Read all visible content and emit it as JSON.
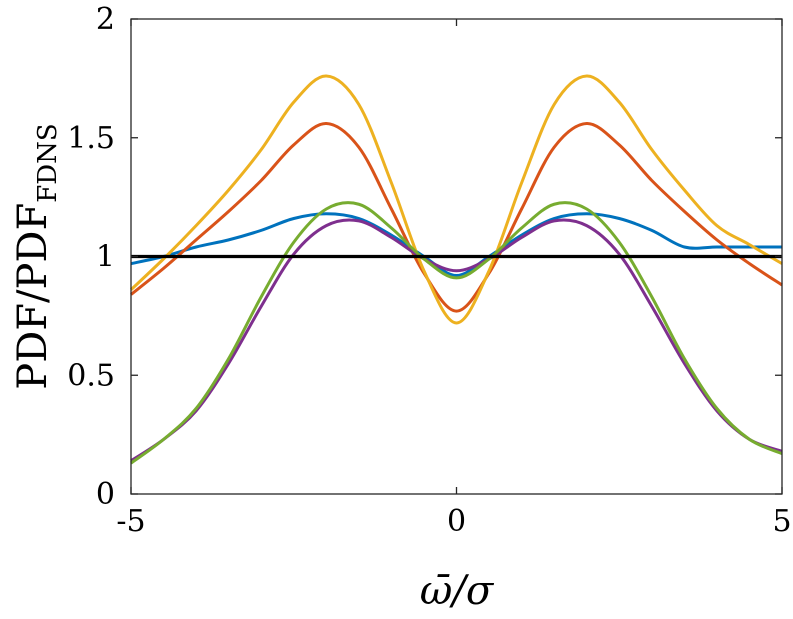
{
  "chart_data": {
    "type": "line",
    "title": "",
    "xlabel": "ω̄/σ",
    "ylabel": "PDF/PDF",
    "ylabel_subscript": "FDNS",
    "xlim": [
      -5,
      5
    ],
    "ylim": [
      0,
      2
    ],
    "xticks": [
      "-5",
      "0",
      "5"
    ],
    "yticks": [
      "0",
      "0.5",
      "1",
      "1.5",
      "2"
    ],
    "xtick_values": [
      -5,
      0,
      5
    ],
    "ytick_values": [
      0,
      0.5,
      1,
      1.5,
      2
    ],
    "grid": false,
    "legend": "none",
    "x": [
      -5,
      -4.5,
      -4,
      -3.5,
      -3,
      -2.5,
      -2,
      -1.5,
      -1,
      -0.5,
      0,
      0.5,
      1,
      1.5,
      2,
      2.5,
      3,
      3.5,
      4,
      4.5,
      5
    ],
    "series": [
      {
        "color": "#0072BD",
        "values": [
          0.97,
          1.0,
          1.04,
          1.07,
          1.11,
          1.16,
          1.18,
          1.16,
          1.09,
          1.0,
          0.92,
          1.0,
          1.09,
          1.16,
          1.18,
          1.16,
          1.11,
          1.04,
          1.04,
          1.04,
          1.04
        ]
      },
      {
        "color": "#D95319",
        "values": [
          0.84,
          0.95,
          1.07,
          1.19,
          1.32,
          1.47,
          1.56,
          1.46,
          1.2,
          0.93,
          0.77,
          0.93,
          1.2,
          1.46,
          1.56,
          1.47,
          1.32,
          1.19,
          1.07,
          0.97,
          0.88
        ]
      },
      {
        "color": "#EDB120",
        "values": [
          0.86,
          0.99,
          1.13,
          1.28,
          1.45,
          1.65,
          1.76,
          1.64,
          1.31,
          0.94,
          0.72,
          0.94,
          1.31,
          1.64,
          1.76,
          1.65,
          1.45,
          1.28,
          1.13,
          1.05,
          0.97
        ]
      },
      {
        "color": "#7E2F8E",
        "values": [
          0.14,
          0.23,
          0.35,
          0.55,
          0.79,
          1.01,
          1.13,
          1.15,
          1.08,
          0.99,
          0.94,
          0.99,
          1.08,
          1.15,
          1.13,
          1.01,
          0.79,
          0.55,
          0.35,
          0.23,
          0.18
        ]
      },
      {
        "color": "#77AC30",
        "values": [
          0.13,
          0.23,
          0.36,
          0.57,
          0.83,
          1.06,
          1.2,
          1.22,
          1.12,
          0.99,
          0.91,
          0.99,
          1.12,
          1.22,
          1.2,
          1.06,
          0.83,
          0.57,
          0.36,
          0.23,
          0.17
        ]
      },
      {
        "color": "#000000",
        "values": [
          1,
          1,
          1,
          1,
          1,
          1,
          1,
          1,
          1,
          1,
          1,
          1,
          1,
          1,
          1,
          1,
          1,
          1,
          1,
          1,
          1
        ]
      }
    ]
  }
}
